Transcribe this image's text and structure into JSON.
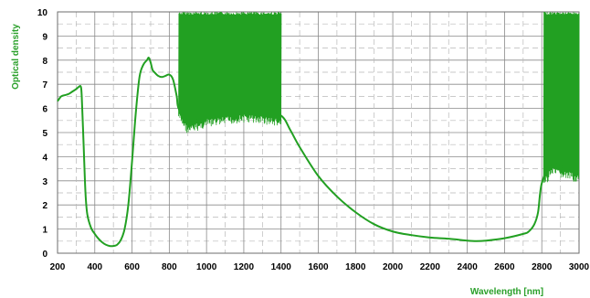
{
  "chart_data": {
    "type": "line",
    "title": "",
    "xlabel": "Wavelength [nm]",
    "ylabel": "Optical density",
    "xlim": [
      200,
      3000
    ],
    "ylim": [
      0,
      10
    ],
    "x_ticks": [
      "200",
      "400",
      "600",
      "800",
      "1000",
      "1200",
      "1400",
      "1600",
      "1800",
      "2000",
      "2200",
      "2400",
      "2600",
      "2800",
      "3000"
    ],
    "y_ticks": [
      "0",
      "1",
      "2",
      "3",
      "4",
      "5",
      "6",
      "7",
      "8",
      "9",
      "10"
    ],
    "grid": "dashed",
    "line_color": "#22a022",
    "series": [
      {
        "x": [
          200,
          220,
          240,
          260,
          280,
          300,
          315,
          325,
          330,
          340,
          350,
          360,
          380,
          400,
          420,
          440,
          460,
          480,
          500,
          520,
          540,
          560,
          580,
          600,
          620,
          640,
          660,
          680,
          690,
          700,
          710,
          720,
          740,
          760,
          780,
          800,
          820,
          840,
          850,
          900,
          1000,
          1100,
          1200,
          1300,
          1400,
          1450,
          1500,
          1600,
          1700,
          1800,
          1900,
          2000,
          2100,
          2200,
          2300,
          2400,
          2450,
          2500,
          2600,
          2700,
          2730,
          2760,
          2780,
          2800,
          2850,
          2900,
          2950,
          3000
        ],
        "y": [
          6.3,
          6.5,
          6.55,
          6.6,
          6.7,
          6.8,
          6.9,
          6.9,
          6.5,
          4.5,
          2.5,
          1.6,
          1.05,
          0.8,
          0.6,
          0.45,
          0.35,
          0.3,
          0.3,
          0.35,
          0.55,
          1.0,
          2.0,
          3.8,
          5.8,
          7.3,
          7.8,
          8.0,
          8.1,
          7.9,
          7.6,
          7.5,
          7.35,
          7.3,
          7.35,
          7.4,
          7.2,
          6.5,
          6.0,
          5.4,
          5.7,
          5.8,
          5.9,
          5.85,
          5.7,
          5.1,
          4.4,
          3.2,
          2.35,
          1.7,
          1.2,
          0.9,
          0.75,
          0.65,
          0.6,
          0.52,
          0.5,
          0.52,
          0.62,
          0.8,
          0.9,
          1.2,
          1.7,
          2.9,
          3.7,
          3.6,
          3.5,
          3.4
        ]
      }
    ],
    "noise_bands": [
      {
        "x_start": 850,
        "x_end": 1400,
        "y_low": 4.5,
        "y_high": 10
      },
      {
        "x_start": 2810,
        "x_end": 3000,
        "y_low": 2.9,
        "y_high": 10
      }
    ]
  }
}
